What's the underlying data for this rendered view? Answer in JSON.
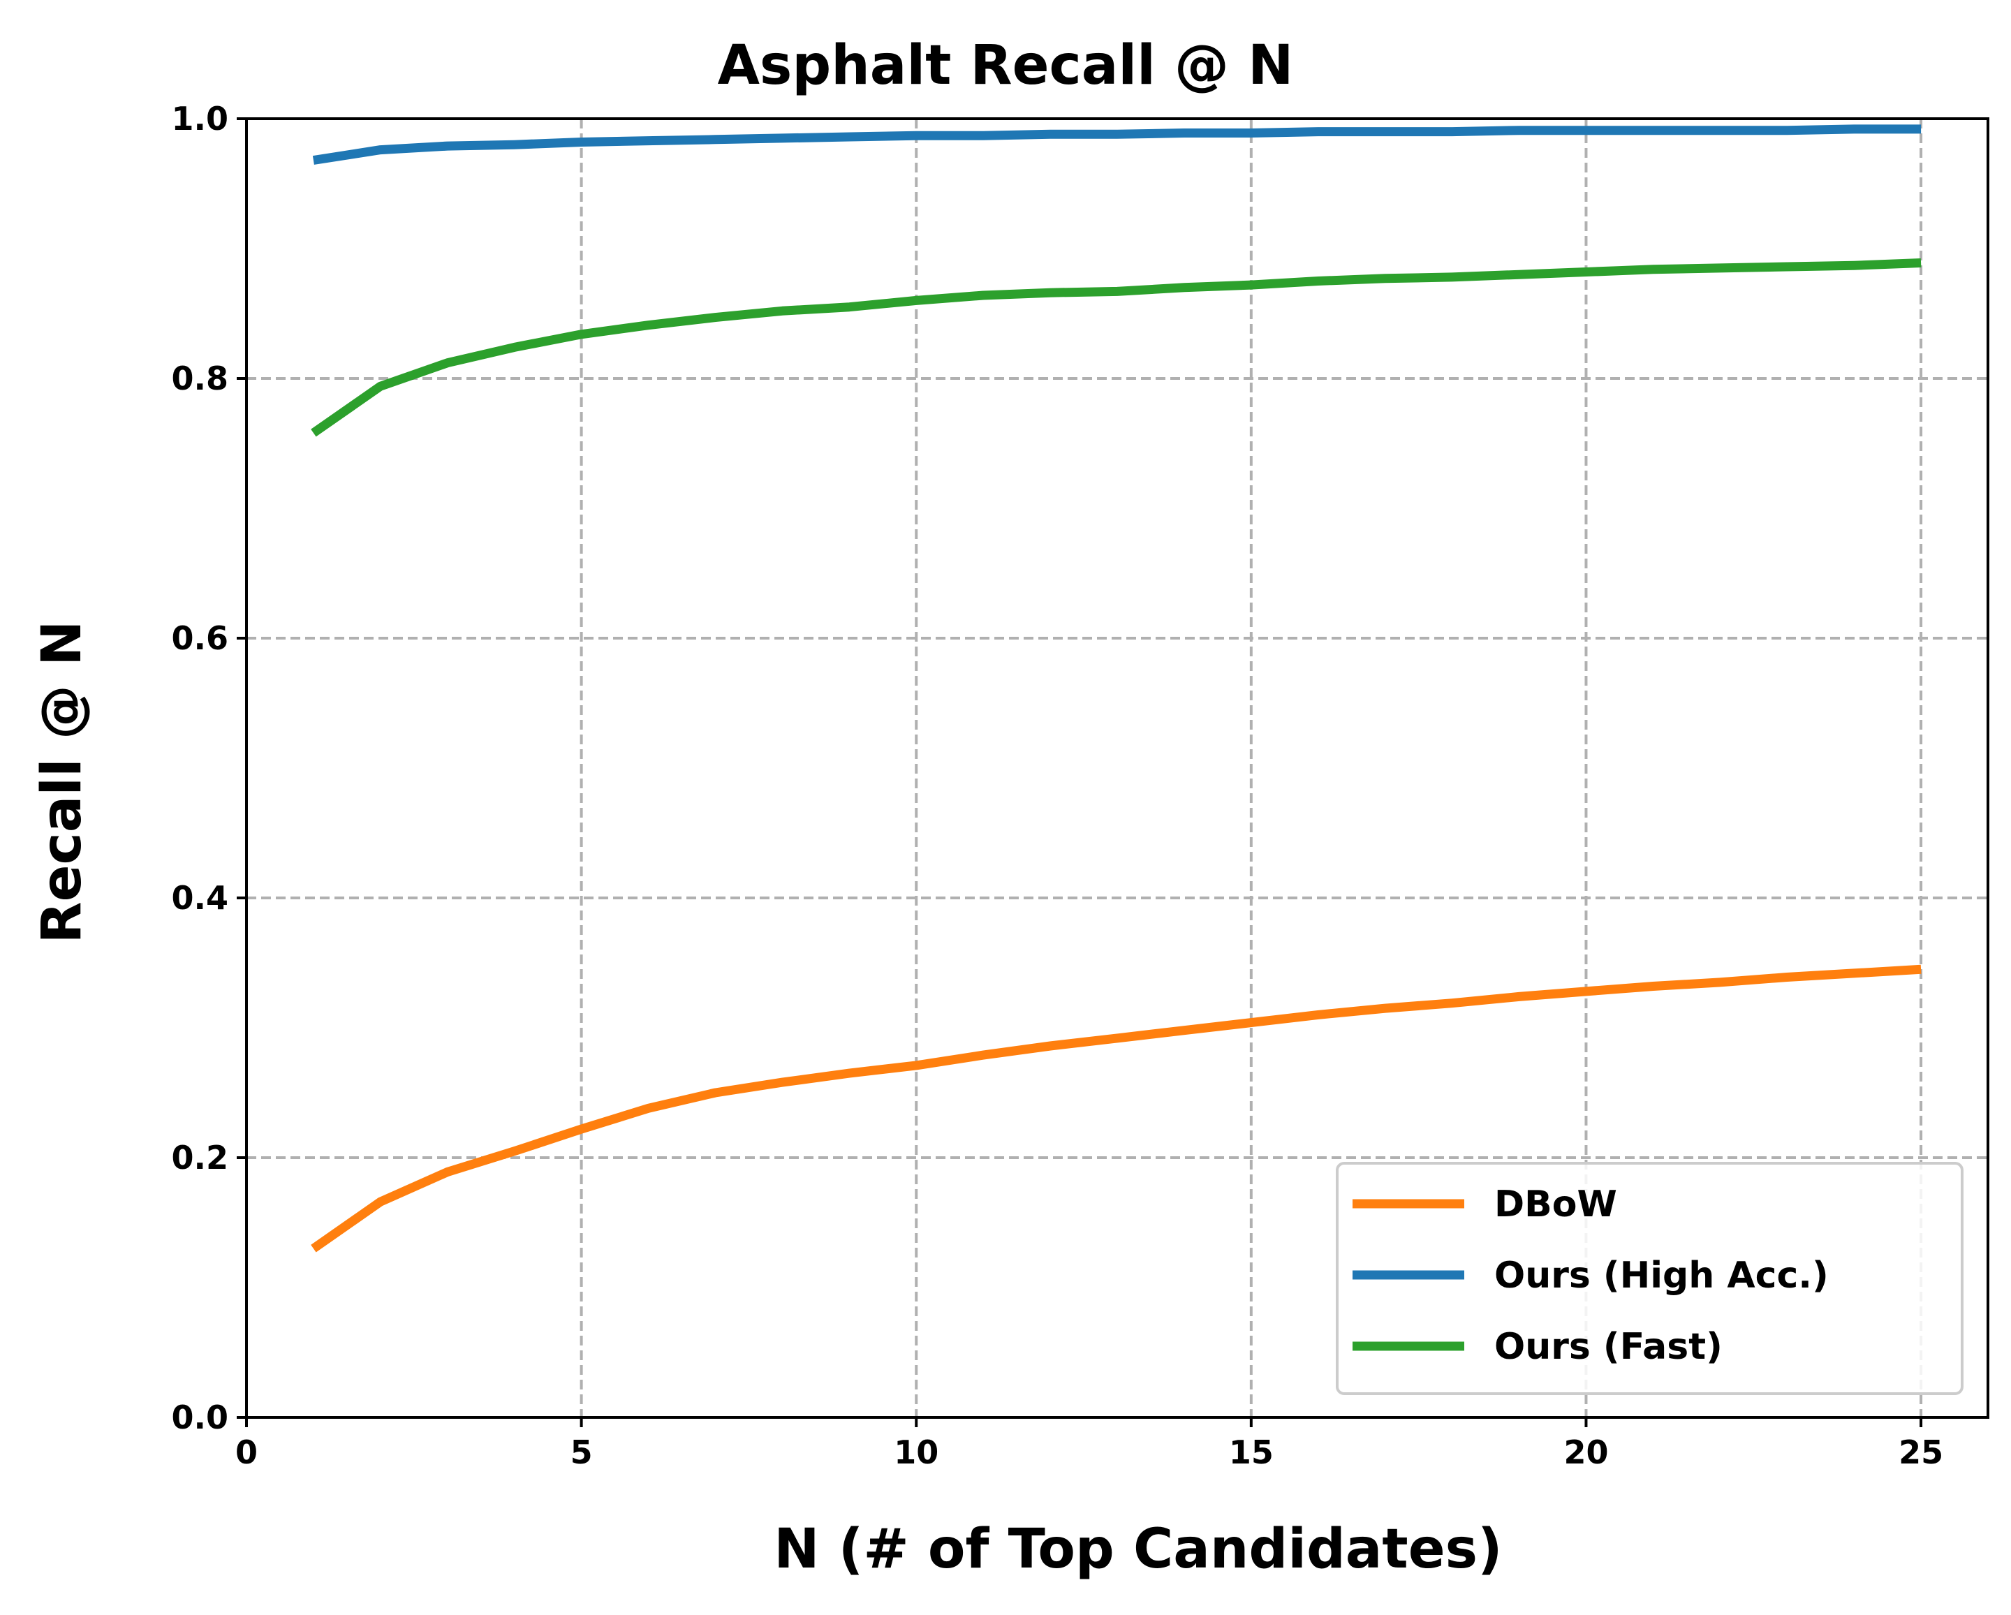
{
  "chart_data": {
    "type": "line",
    "title": "Asphalt Recall @ N",
    "xlabel": "N (# of Top Candidates)",
    "ylabel": "Recall @ N",
    "xlim": [
      0,
      26
    ],
    "ylim": [
      0.0,
      1.0
    ],
    "xticks": [
      0,
      5,
      10,
      15,
      20,
      25
    ],
    "yticks": [
      0.0,
      0.2,
      0.4,
      0.6,
      0.8,
      1.0
    ],
    "xtick_labels": [
      "0",
      "5",
      "10",
      "15",
      "20",
      "25"
    ],
    "ytick_labels": [
      "0.0",
      "0.2",
      "0.4",
      "0.6",
      "0.8",
      "1.0"
    ],
    "grid": true,
    "legend_position": "lower-right",
    "x": [
      1,
      2,
      3,
      4,
      5,
      6,
      7,
      8,
      9,
      10,
      11,
      12,
      13,
      14,
      15,
      16,
      17,
      18,
      19,
      20,
      21,
      22,
      23,
      24,
      25
    ],
    "series": [
      {
        "name": "DBoW",
        "color": "#ff7f0e",
        "values": [
          0.13,
          0.166,
          0.189,
          0.205,
          0.222,
          0.238,
          0.25,
          0.258,
          0.265,
          0.271,
          0.279,
          0.286,
          0.292,
          0.298,
          0.304,
          0.31,
          0.315,
          0.319,
          0.324,
          0.328,
          0.332,
          0.335,
          0.339,
          0.342,
          0.345
        ]
      },
      {
        "name": "Ours (High Acc.)",
        "color": "#1f77b4",
        "values": [
          0.968,
          0.976,
          0.979,
          0.98,
          0.982,
          0.983,
          0.984,
          0.985,
          0.986,
          0.987,
          0.987,
          0.988,
          0.988,
          0.989,
          0.989,
          0.99,
          0.99,
          0.99,
          0.991,
          0.991,
          0.991,
          0.991,
          0.991,
          0.992,
          0.992
        ]
      },
      {
        "name": "Ours (Fast)",
        "color": "#2ca02c",
        "values": [
          0.758,
          0.794,
          0.812,
          0.824,
          0.834,
          0.841,
          0.847,
          0.852,
          0.855,
          0.86,
          0.864,
          0.866,
          0.867,
          0.87,
          0.872,
          0.875,
          0.877,
          0.878,
          0.88,
          0.882,
          0.884,
          0.885,
          0.886,
          0.887,
          0.889
        ]
      }
    ]
  }
}
